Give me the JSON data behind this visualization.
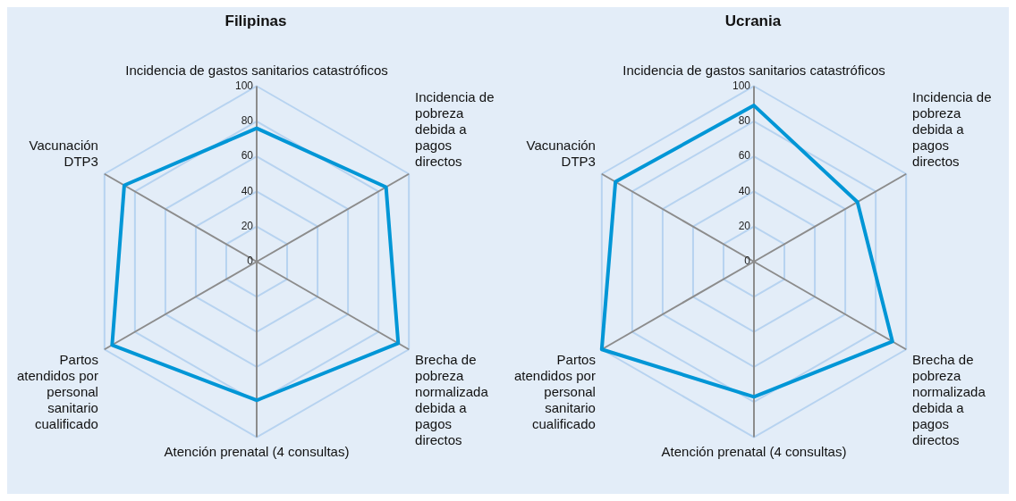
{
  "chart_data": [
    {
      "type": "radar",
      "title": "Filipinas",
      "categories": [
        "Incidencia de gastos sanitarios catastróficos",
        "Incidencia de pobreza debida a pagos directos",
        "Brecha de pobreza normalizada debida a pagos directos",
        "Atención prenatal (4 consultas)",
        "Partos atendidos por personal sanitario cualificado",
        "Vacunación DTP3"
      ],
      "series": [
        {
          "color": "#0096d6",
          "values": [
            76,
            85,
            93,
            79,
            95,
            87
          ]
        }
      ],
      "ylim": [
        0,
        100
      ],
      "yticks": [
        0,
        20,
        40,
        60,
        80,
        100
      ],
      "grid": true,
      "marker": "none"
    },
    {
      "type": "radar",
      "title": "Ucrania",
      "categories": [
        "Incidencia de gastos sanitarios catastróficos",
        "Incidencia de pobreza debida a pagos directos",
        "Brecha de pobreza normalizada debida a pagos directos",
        "Atención prenatal (4 consultas)",
        "Partos atendidos por personal sanitario cualificado",
        "Vacunación DTP3"
      ],
      "series": [
        {
          "color": "#0096d6",
          "values": [
            89,
            68,
            91,
            77,
            100,
            91
          ]
        }
      ],
      "ylim": [
        0,
        100
      ],
      "yticks": [
        0,
        20,
        40,
        60,
        80,
        100
      ],
      "grid": true,
      "marker": "none"
    }
  ]
}
